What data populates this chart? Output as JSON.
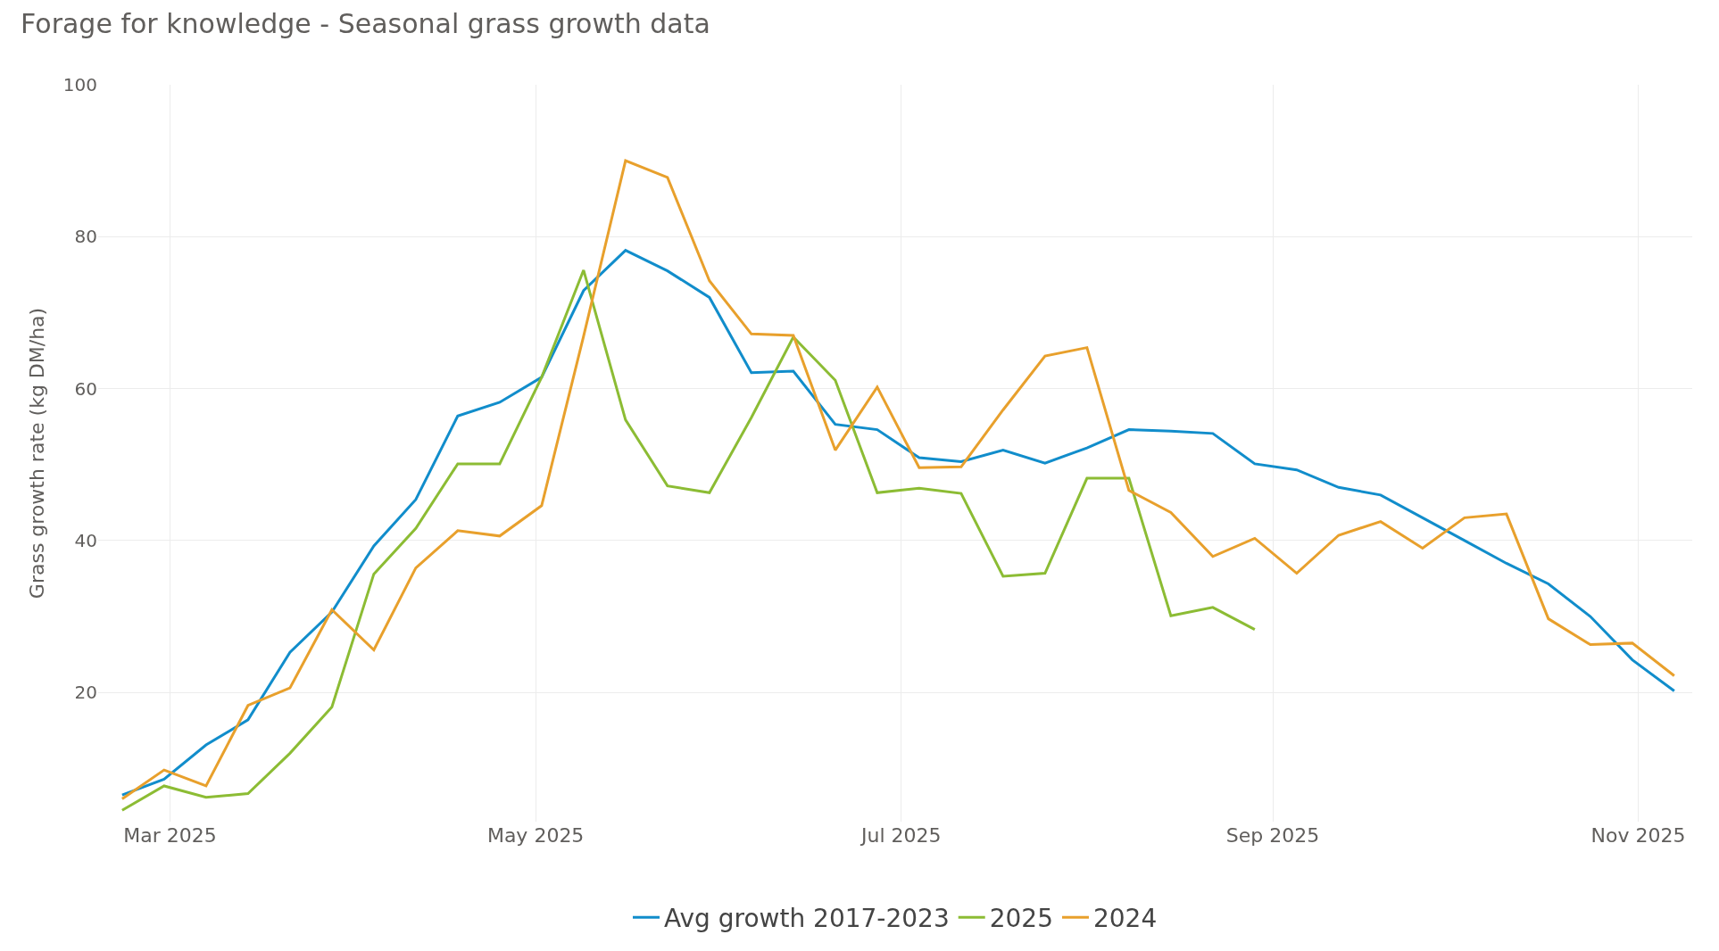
{
  "chart_data": {
    "type": "line",
    "title": "Forage for knowledge - Seasonal grass growth data",
    "ylabel": "Grass growth rate (kg DM/ha)",
    "x": [
      "2025-02-21",
      "2025-02-28",
      "2025-03-07",
      "2025-03-14",
      "2025-03-21",
      "2025-03-28",
      "2025-04-04",
      "2025-04-11",
      "2025-04-18",
      "2025-04-25",
      "2025-05-02",
      "2025-05-09",
      "2025-05-16",
      "2025-05-23",
      "2025-05-30",
      "2025-06-06",
      "2025-06-13",
      "2025-06-20",
      "2025-06-27",
      "2025-07-04",
      "2025-07-11",
      "2025-07-18",
      "2025-07-25",
      "2025-08-01",
      "2025-08-08",
      "2025-08-15",
      "2025-08-22",
      "2025-08-29",
      "2025-09-05",
      "2025-09-12",
      "2025-09-19",
      "2025-09-26",
      "2025-10-03",
      "2025-10-10",
      "2025-10-17",
      "2025-10-24",
      "2025-10-31",
      "2025-11-07"
    ],
    "series": [
      {
        "name": "Avg growth 2017-2023",
        "color": "#118dcb",
        "values": [
          6.5,
          8.6,
          13.1,
          16.4,
          25.3,
          30.6,
          39.3,
          45.4,
          56.4,
          58.2,
          61.5,
          72.9,
          78.2,
          75.5,
          72,
          62.1,
          62.3,
          55.3,
          54.6,
          50.9,
          50.4,
          51.9,
          50.2,
          52.2,
          54.6,
          54.4,
          54.1,
          50.1,
          49.3,
          47,
          46,
          43,
          40,
          37,
          34.3,
          30,
          24.3,
          20.2
        ]
      },
      {
        "name": "2025",
        "color": "#8cbc34",
        "values": [
          4.5,
          7.7,
          6.2,
          6.7,
          12,
          18.1,
          35.6,
          41.6,
          50.1,
          50.1,
          61.5,
          75.6,
          55.9,
          47.2,
          46.3,
          56.2,
          66.8,
          61.1,
          46.3,
          46.9,
          46.2,
          35.3,
          35.7,
          48.2,
          48.2,
          30.1,
          31.2,
          28.3,
          null,
          null,
          null,
          null,
          null,
          null,
          null,
          null,
          null,
          null
        ]
      },
      {
        "name": "2024",
        "color": "#e8a02c",
        "values": [
          6,
          9.8,
          7.7,
          18.3,
          20.6,
          30.9,
          25.6,
          36.4,
          41.3,
          40.6,
          44.6,
          66.9,
          90,
          87.8,
          74.2,
          67.2,
          67,
          51.9,
          60.2,
          49.6,
          49.7,
          57.2,
          64.3,
          65.4,
          46.6,
          43.7,
          37.9,
          40.3,
          35.7,
          40.7,
          42.5,
          39,
          43,
          43.5,
          29.7,
          26.3,
          26.5,
          22.2
        ]
      }
    ],
    "xlim": [
      "2025-02-17",
      "2025-11-10"
    ],
    "xticks": [
      {
        "value": "2025-03-01",
        "label": "Mar 2025"
      },
      {
        "value": "2025-05-01",
        "label": "May 2025"
      },
      {
        "value": "2025-07-01",
        "label": "Jul 2025"
      },
      {
        "value": "2025-09-01",
        "label": "Sep 2025"
      },
      {
        "value": "2025-11-01",
        "label": "Nov 2025"
      }
    ],
    "ylim": [
      3,
      100
    ],
    "yticks": [
      20,
      40,
      60,
      80,
      100
    ],
    "grid": true,
    "legend": "bottom",
    "marker": "none",
    "line_style": "solid"
  }
}
